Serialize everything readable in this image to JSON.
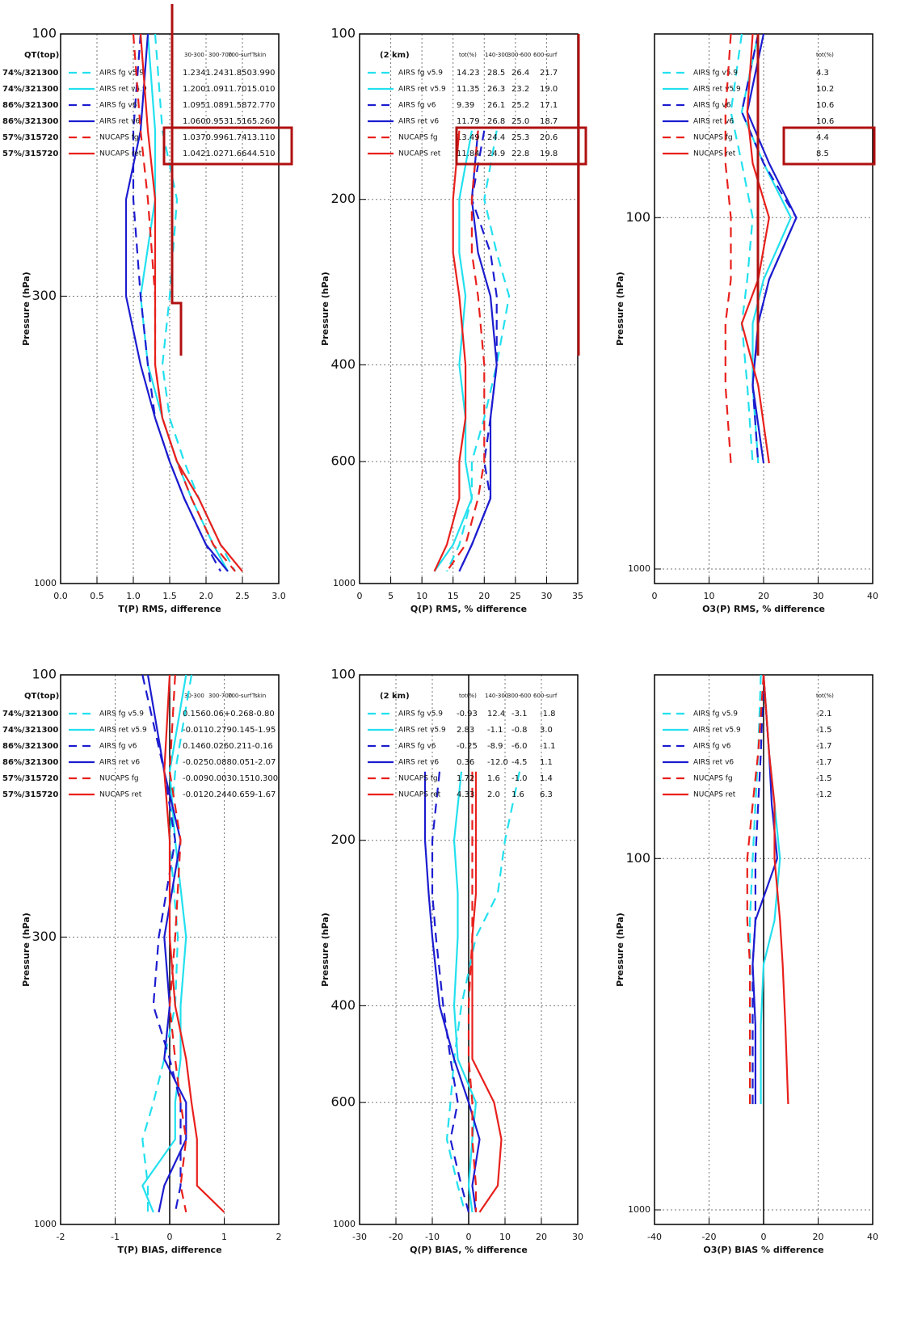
{
  "chart_data": [
    {
      "type": "line",
      "x_label": "T(P) RMS, difference",
      "y_label": "Pressure (hPa)",
      "ylog": true,
      "grid": true,
      "zero_line": false,
      "xlim": [
        0,
        3
      ],
      "xticks": [
        {
          "value": 0,
          "label": "0.0"
        },
        {
          "value": 0.5,
          "label": "0.5"
        },
        {
          "value": 1,
          "label": "1.0"
        },
        {
          "value": 1.5,
          "label": "1.5"
        },
        {
          "value": 2,
          "label": "2.0"
        },
        {
          "value": 2.5,
          "label": "2.5"
        },
        {
          "value": 3,
          "label": "3.0"
        }
      ],
      "ylim": [
        100,
        1000
      ],
      "yticks": [
        100,
        300,
        1000
      ],
      "pressure": [
        100,
        150,
        200,
        300,
        400,
        500,
        600,
        700,
        850,
        950
      ],
      "legend_title": "QT(top)",
      "stats_header": [
        "30-300",
        "300-700",
        "700-surf",
        "Tskin"
      ],
      "series": [
        {
          "name": "AIRS fg v5.9",
          "sample": "74%/321300",
          "color": "#22e0ee",
          "dash": true,
          "values": [
            1.3,
            1.4,
            1.6,
            1.5,
            1.4,
            1.5,
            1.7,
            1.9,
            2.2,
            2.4
          ],
          "stats": [
            "1.2341.2431.8503.990"
          ]
        },
        {
          "name": "AIRS ret v5.9",
          "sample": "74%/321300",
          "color": "#22e0ee",
          "dash": false,
          "values": [
            1.2,
            1.3,
            1.3,
            1.1,
            1.2,
            1.4,
            1.6,
            1.8,
            2.1,
            2.3
          ],
          "stats": [
            "1.2001.0911.7015.010"
          ]
        },
        {
          "name": "AIRS fg v6",
          "sample": "86%/321300",
          "color": "#1c1cd0",
          "dash": true,
          "values": [
            1.1,
            1.0,
            1.0,
            1.1,
            1.2,
            1.3,
            1.5,
            1.7,
            2.0,
            2.2
          ],
          "stats": [
            "1.0951.0891.5872.770"
          ]
        },
        {
          "name": "AIRS ret v6",
          "sample": "86%/321300",
          "color": "#1c1cd0",
          "dash": false,
          "values": [
            1.2,
            1.1,
            0.9,
            0.9,
            1.1,
            1.3,
            1.5,
            1.7,
            2.0,
            2.3
          ],
          "stats": [
            "1.0600.9531.5165.260"
          ]
        },
        {
          "name": "NUCAPS fg",
          "sample": "57%/315720",
          "color": "#e8201c",
          "dash": true,
          "values": [
            1.0,
            1.1,
            1.2,
            1.3,
            1.3,
            1.4,
            1.6,
            1.8,
            2.1,
            2.4
          ],
          "stats": [
            "1.0370.9961.7413.110"
          ]
        },
        {
          "name": "NUCAPS ret",
          "sample": "57%/315720",
          "color": "#e8201c",
          "dash": false,
          "values": [
            1.1,
            1.2,
            1.3,
            1.3,
            1.3,
            1.4,
            1.6,
            1.9,
            2.2,
            2.5
          ],
          "stats": [
            "1.0421.0271.6644.510"
          ]
        }
      ]
    },
    {
      "type": "line",
      "x_label": "Q(P) RMS, % difference",
      "y_label": "Pressure (hPa)",
      "ylog": true,
      "grid": true,
      "zero_line": false,
      "xlim": [
        0,
        35
      ],
      "xticks": [
        0,
        5,
        10,
        15,
        20,
        25,
        30,
        35
      ],
      "ylim": [
        100,
        1000
      ],
      "yticks": [
        100,
        200,
        400,
        600,
        1000
      ],
      "pressure": [
        150,
        200,
        250,
        300,
        400,
        500,
        600,
        700,
        850,
        950
      ],
      "legend_title": "(2 km)",
      "stats_header": [
        "tot(%)",
        "140-300",
        "300-600",
        "600-surf"
      ],
      "series": [
        {
          "name": "AIRS fg v5.9",
          "color": "#22e0ee",
          "dash": true,
          "values": [
            22,
            20,
            22,
            24,
            22,
            20,
            18,
            18,
            16,
            14
          ],
          "stats": [
            "14.23",
            "28.5",
            "26.4",
            "21.7"
          ]
        },
        {
          "name": "AIRS ret v5.9",
          "color": "#22e0ee",
          "dash": false,
          "values": [
            18,
            16,
            16,
            17,
            16,
            17,
            17,
            18,
            15,
            12
          ],
          "stats": [
            "11.35",
            "26.3",
            "23.2",
            "19.0"
          ]
        },
        {
          "name": "AIRS fg v6",
          "color": "#1c1cd0",
          "dash": true,
          "values": [
            20,
            18,
            21,
            22,
            22,
            21,
            20,
            21,
            18,
            16
          ],
          "stats": [
            "9.39",
            "26.1",
            "25.2",
            "17.1"
          ]
        },
        {
          "name": "AIRS ret v6",
          "color": "#1c1cd0",
          "dash": false,
          "values": [
            19,
            18,
            19,
            21,
            22,
            21,
            21,
            21,
            18,
            16
          ],
          "stats": [
            "11.79",
            "26.8",
            "25.0",
            "18.7"
          ]
        },
        {
          "name": "NUCAPS fg",
          "color": "#e8201c",
          "dash": true,
          "values": [
            19,
            18,
            18,
            19,
            20,
            20,
            20,
            19,
            17,
            14
          ],
          "stats": [
            "13.49",
            "24.4",
            "25.3",
            "20.6"
          ]
        },
        {
          "name": "NUCAPS ret",
          "color": "#e8201c",
          "dash": false,
          "values": [
            16,
            15,
            15,
            16,
            17,
            17,
            16,
            16,
            14,
            12
          ],
          "stats": [
            "11.84",
            "24.9",
            "22.8",
            "19.8"
          ]
        }
      ]
    },
    {
      "type": "line",
      "x_label": "O3(P) RMS, % difference",
      "y_label": "Pressure (hPa)",
      "ylog": true,
      "grid": true,
      "zero_line": false,
      "xlim": [
        0,
        40
      ],
      "xticks": [
        0,
        10,
        20,
        30,
        40
      ],
      "ylim": [
        30,
        1100
      ],
      "yticks": [
        100,
        1000
      ],
      "pressure": [
        30,
        50,
        70,
        100,
        150,
        200,
        300,
        500
      ],
      "stats_header": [
        "tot(%)"
      ],
      "series": [
        {
          "name": "AIRS fg v5.9",
          "color": "#22e0ee",
          "dash": true,
          "values": [
            16,
            14,
            16,
            18,
            17,
            16,
            17,
            18
          ],
          "stats": [
            "4.3"
          ]
        },
        {
          "name": "AIRS ret v5.9",
          "color": "#22e0ee",
          "dash": false,
          "values": [
            19,
            16,
            20,
            25,
            20,
            18,
            18,
            19
          ],
          "stats": [
            "10.2"
          ]
        },
        {
          "name": "AIRS fg v6",
          "color": "#1c1cd0",
          "dash": true,
          "values": [
            19,
            16,
            20,
            26,
            21,
            19,
            18,
            19
          ],
          "stats": [
            "10.6"
          ]
        },
        {
          "name": "AIRS ret v6",
          "color": "#1c1cd0",
          "dash": false,
          "values": [
            20,
            17,
            21,
            26,
            21,
            19,
            18,
            20
          ],
          "stats": [
            "10.6"
          ]
        },
        {
          "name": "NUCAPS fg",
          "color": "#e8201c",
          "dash": true,
          "values": [
            14,
            13,
            13,
            14,
            14,
            13,
            13,
            14
          ],
          "stats": [
            "4.4"
          ]
        },
        {
          "name": "NUCAPS ret",
          "color": "#e8201c",
          "dash": false,
          "values": [
            18,
            17,
            18,
            21,
            19,
            16,
            19,
            21
          ],
          "stats": [
            "8.5"
          ]
        }
      ]
    },
    {
      "type": "line",
      "x_label": "T(P) BIAS, difference",
      "y_label": "Pressure (hPa)",
      "ylog": true,
      "grid": true,
      "zero_line": true,
      "xlim": [
        -2,
        2
      ],
      "xticks": [
        -2,
        -1,
        0,
        1,
        2
      ],
      "ylim": [
        100,
        1000
      ],
      "yticks": [
        100,
        300,
        1000
      ],
      "pressure": [
        100,
        150,
        200,
        300,
        400,
        500,
        600,
        700,
        850,
        950
      ],
      "legend_title": "QT(top)",
      "stats_header": [
        "30-300",
        "300-700",
        "700-surf",
        "Tskin"
      ],
      "series": [
        {
          "name": "AIRS fg v5.9",
          "sample": "74%/321300",
          "color": "#22e0ee",
          "dash": true,
          "values": [
            0.4,
            0.1,
            0.0,
            0.15,
            0.1,
            -0.1,
            -0.3,
            -0.5,
            -0.4,
            -0.4
          ],
          "stats": [
            "0.1560.06+0.268-0.80"
          ]
        },
        {
          "name": "AIRS ret v5.9",
          "sample": "74%/321300",
          "color": "#22e0ee",
          "dash": false,
          "values": [
            0.3,
            0.0,
            0.1,
            0.3,
            0.2,
            0.2,
            0.1,
            0.1,
            -0.5,
            -0.3
          ],
          "stats": [
            "-0.0110.2790.145-1.95"
          ]
        },
        {
          "name": "AIRS fg v6",
          "sample": "86%/321300",
          "color": "#1c1cd0",
          "dash": true,
          "values": [
            -0.5,
            -0.1,
            0.1,
            -0.2,
            -0.3,
            0.0,
            0.2,
            0.2,
            0.2,
            0.1
          ],
          "stats": [
            "0.1460.0260.211-0.16"
          ]
        },
        {
          "name": "AIRS ret v6",
          "sample": "86%/321300",
          "color": "#1c1cd0",
          "dash": false,
          "values": [
            -0.4,
            -0.1,
            0.2,
            -0.1,
            0.0,
            -0.1,
            0.3,
            0.3,
            -0.1,
            -0.2
          ],
          "stats": [
            "-0.0250.0880.051-2.07"
          ]
        },
        {
          "name": "NUCAPS fg",
          "sample": "57%/315720",
          "color": "#e8201c",
          "dash": true,
          "values": [
            0.1,
            0.0,
            0.2,
            0.1,
            0.0,
            0.1,
            0.2,
            0.3,
            0.2,
            0.3
          ],
          "stats": [
            "-0.0090.0030.1510.300"
          ]
        },
        {
          "name": "NUCAPS ret",
          "sample": "57%/315720",
          "color": "#e8201c",
          "dash": false,
          "values": [
            0.0,
            -0.1,
            0.0,
            0.0,
            0.1,
            0.3,
            0.4,
            0.5,
            0.5,
            1.0
          ],
          "stats": [
            "-0.0120.2440.659-1.67"
          ]
        }
      ]
    },
    {
      "type": "line",
      "x_label": "Q(P) BIAS, % difference",
      "y_label": "Pressure (hPa)",
      "ylog": true,
      "grid": true,
      "zero_line": true,
      "xlim": [
        -30,
        30
      ],
      "xticks": [
        -30,
        -20,
        -10,
        0,
        10,
        20,
        30
      ],
      "ylim": [
        100,
        1000
      ],
      "yticks": [
        100,
        200,
        400,
        600,
        1000
      ],
      "pressure": [
        150,
        200,
        250,
        300,
        400,
        500,
        600,
        700,
        850,
        950
      ],
      "legend_title": "(2 km)",
      "stats_header": [
        "tot(%)",
        "140-300",
        "300-600",
        "600-surf"
      ],
      "series": [
        {
          "name": "AIRS fg v5.9",
          "color": "#22e0ee",
          "dash": true,
          "values": [
            14,
            10,
            8,
            2,
            -2,
            -4,
            -5,
            -6,
            -3,
            -1
          ],
          "stats": [
            "-0.93",
            "12.4",
            "-3.1",
            "-1.8"
          ]
        },
        {
          "name": "AIRS ret v5.9",
          "color": "#22e0ee",
          "dash": false,
          "values": [
            -2,
            -4,
            -3,
            -3,
            -4,
            -3,
            2,
            1,
            0,
            1
          ],
          "stats": [
            "2.83",
            "-1.1",
            "-0.8",
            "3.0"
          ]
        },
        {
          "name": "AIRS fg v6",
          "color": "#1c1cd0",
          "dash": true,
          "values": [
            -8,
            -10,
            -10,
            -9,
            -7,
            -5,
            -3,
            -5,
            -2,
            0
          ],
          "stats": [
            "-0.25",
            "-8.9",
            "-6.0",
            "-1.1"
          ]
        },
        {
          "name": "AIRS ret v6",
          "color": "#1c1cd0",
          "dash": false,
          "values": [
            -12,
            -12,
            -11,
            -10,
            -8,
            -4,
            0,
            3,
            1,
            2
          ],
          "stats": [
            "0.36",
            "-12.0",
            "-4.5",
            "1.1"
          ]
        },
        {
          "name": "NUCAPS fg",
          "color": "#e8201c",
          "dash": true,
          "values": [
            1,
            1,
            1,
            1,
            0,
            0,
            1,
            1,
            2,
            2
          ],
          "stats": [
            "1.72",
            "1.6",
            "-1.0",
            "1.4"
          ]
        },
        {
          "name": "NUCAPS ret",
          "color": "#e8201c",
          "dash": false,
          "values": [
            2,
            2,
            2,
            1,
            1,
            1,
            7,
            9,
            8,
            3
          ],
          "stats": [
            "4.33",
            "2.0",
            "1.6",
            "6.3"
          ]
        }
      ]
    },
    {
      "type": "line",
      "x_label": "O3(P) BIAS % difference",
      "y_label": "Pressure (hPa)",
      "ylog": true,
      "grid": true,
      "zero_line": true,
      "xlim": [
        -40,
        40
      ],
      "xticks": [
        -40,
        -20,
        0,
        20,
        40
      ],
      "ylim": [
        30,
        1100
      ],
      "yticks": [
        100,
        1000
      ],
      "pressure": [
        30,
        50,
        70,
        100,
        150,
        200,
        300,
        500
      ],
      "stats_header": [
        "tot(%)"
      ],
      "series": [
        {
          "name": "AIRS fg v5.9",
          "color": "#22e0ee",
          "dash": true,
          "values": [
            -1,
            -2,
            -3,
            -4,
            -5,
            -5,
            -5,
            -5
          ],
          "stats": [
            "-2.1"
          ]
        },
        {
          "name": "AIRS ret v5.9",
          "color": "#22e0ee",
          "dash": false,
          "values": [
            0,
            2,
            4,
            6,
            4,
            0,
            -1,
            -1
          ],
          "stats": [
            "-1.5"
          ]
        },
        {
          "name": "AIRS fg v6",
          "color": "#1c1cd0",
          "dash": true,
          "values": [
            0,
            -1,
            -2,
            -3,
            -3,
            -4,
            -4,
            -4
          ],
          "stats": [
            "-1.7"
          ]
        },
        {
          "name": "AIRS ret v6",
          "color": "#1c1cd0",
          "dash": false,
          "values": [
            0,
            2,
            3,
            5,
            -3,
            -4,
            -3,
            -3
          ],
          "stats": [
            "-1.7"
          ]
        },
        {
          "name": "NUCAPS fg",
          "color": "#e8201c",
          "dash": true,
          "values": [
            0,
            -2,
            -4,
            -6,
            -6,
            -5,
            -5,
            -5
          ],
          "stats": [
            "-1.5"
          ]
        },
        {
          "name": "NUCAPS ret",
          "color": "#e8201c",
          "dash": false,
          "values": [
            0,
            2,
            4,
            4,
            6,
            7,
            8,
            9
          ],
          "stats": [
            "-1.2"
          ]
        }
      ]
    }
  ]
}
